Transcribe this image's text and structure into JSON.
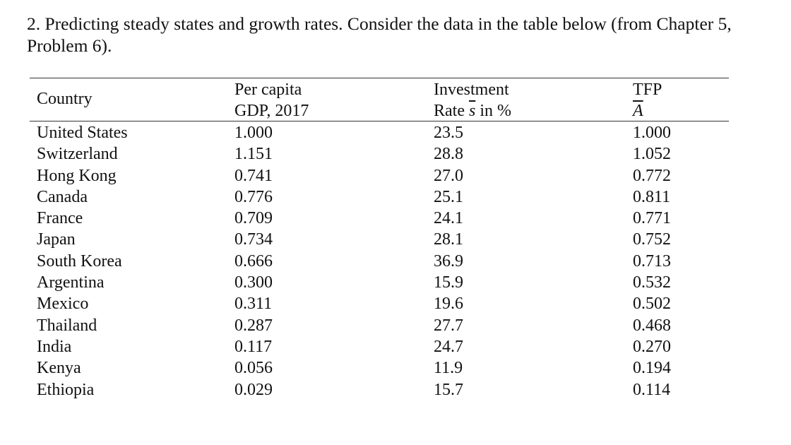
{
  "problem": {
    "line1": "2. Predicting steady states and growth rates. Consider the data in the table below (from Chapter 5,",
    "line2": "Problem 6)."
  },
  "table": {
    "headers": {
      "country": "Country",
      "gdp_line1": "Per capita",
      "gdp_line2": "GDP, 2017",
      "inv_line1": "Investment",
      "inv_line2_prefix": "Rate ",
      "inv_line2_symbol": "s",
      "inv_line2_suffix": " in %",
      "tfp_line1": "TFP",
      "tfp_line2": "A"
    },
    "rows": [
      {
        "country": "United States",
        "gdp": "1.000",
        "investment": "23.5",
        "tfp": "1.000"
      },
      {
        "country": "Switzerland",
        "gdp": "1.151",
        "investment": "28.8",
        "tfp": "1.052"
      },
      {
        "country": "Hong Kong",
        "gdp": "0.741",
        "investment": "27.0",
        "tfp": "0.772"
      },
      {
        "country": "Canada",
        "gdp": "0.776",
        "investment": "25.1",
        "tfp": "0.811"
      },
      {
        "country": "France",
        "gdp": "0.709",
        "investment": "24.1",
        "tfp": "0.771"
      },
      {
        "country": "Japan",
        "gdp": "0.734",
        "investment": "28.1",
        "tfp": "0.752"
      },
      {
        "country": "South Korea",
        "gdp": "0.666",
        "investment": "36.9",
        "tfp": "0.713"
      },
      {
        "country": "Argentina",
        "gdp": "0.300",
        "investment": "15.9",
        "tfp": "0.532"
      },
      {
        "country": "Mexico",
        "gdp": "0.311",
        "investment": "19.6",
        "tfp": "0.502"
      },
      {
        "country": "Thailand",
        "gdp": "0.287",
        "investment": "27.7",
        "tfp": "0.468"
      },
      {
        "country": "India",
        "gdp": "0.117",
        "investment": "24.7",
        "tfp": "0.270"
      },
      {
        "country": "Kenya",
        "gdp": "0.056",
        "investment": "11.9",
        "tfp": "0.194"
      },
      {
        "country": "Ethiopia",
        "gdp": "0.029",
        "investment": "15.7",
        "tfp": "0.114"
      }
    ]
  }
}
